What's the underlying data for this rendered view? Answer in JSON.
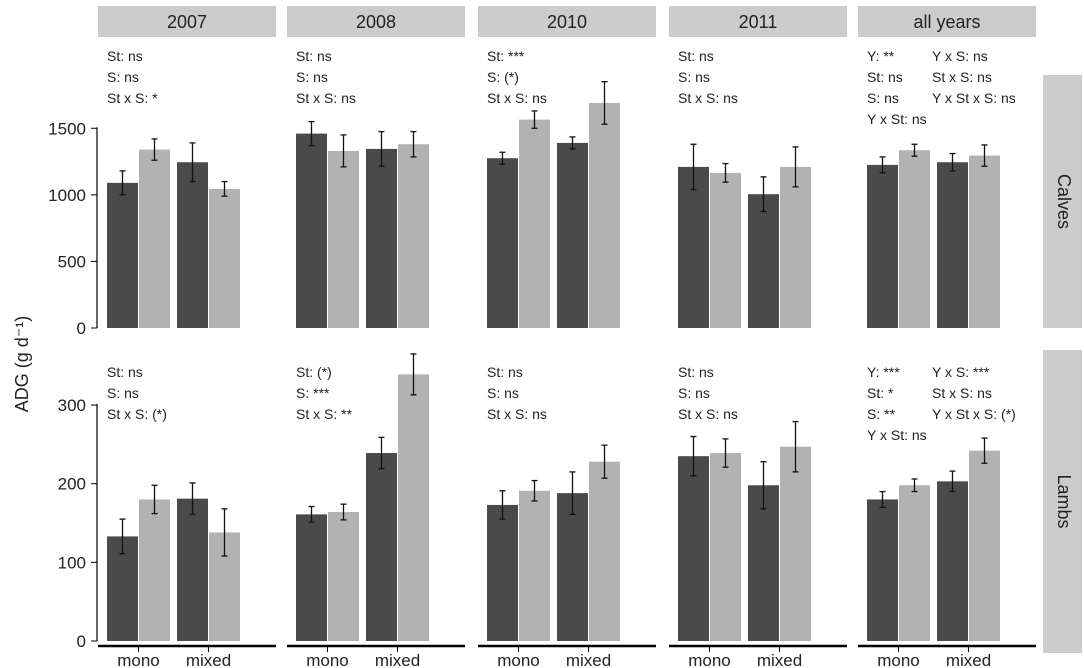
{
  "chart_data": {
    "type": "bar",
    "ylabel": "ADG (g d⁻¹)",
    "categories": [
      "mono",
      "mixed"
    ],
    "colors": {
      "dark": "#4a4a4a",
      "light": "#b2b2b2",
      "strip": "#cccccc",
      "axis": "#000000",
      "text": "#222222"
    },
    "columns": [
      "2007",
      "2008",
      "2010",
      "2011",
      "all years"
    ],
    "rows": [
      {
        "name": "Calves",
        "ylim": [
          0,
          1900
        ],
        "yticks": [
          0,
          500,
          1000,
          1500
        ],
        "panels": [
          {
            "bars": [
              {
                "value": 1090,
                "err": 90
              },
              {
                "value": 1340,
                "err": 80
              },
              {
                "value": 1245,
                "err": 145
              },
              {
                "value": 1045,
                "err": 55
              }
            ],
            "stats_left": [
              "St: ns",
              "S: ns",
              "St x S: *"
            ],
            "stats_right": []
          },
          {
            "bars": [
              {
                "value": 1460,
                "err": 90
              },
              {
                "value": 1330,
                "err": 120
              },
              {
                "value": 1345,
                "err": 130
              },
              {
                "value": 1380,
                "err": 95
              }
            ],
            "stats_left": [
              "St: ns",
              "S: ns",
              "St x S: ns"
            ],
            "stats_right": []
          },
          {
            "bars": [
              {
                "value": 1275,
                "err": 45
              },
              {
                "value": 1565,
                "err": 65
              },
              {
                "value": 1390,
                "err": 45
              },
              {
                "value": 1690,
                "err": 160
              }
            ],
            "stats_left": [
              "St: ***",
              "S: (*)",
              "St x S: ns"
            ],
            "stats_right": []
          },
          {
            "bars": [
              {
                "value": 1210,
                "err": 170
              },
              {
                "value": 1165,
                "err": 70
              },
              {
                "value": 1005,
                "err": 130
              },
              {
                "value": 1210,
                "err": 150
              }
            ],
            "stats_left": [
              "St: ns",
              "S: ns",
              "St x S: ns"
            ],
            "stats_right": []
          },
          {
            "bars": [
              {
                "value": 1225,
                "err": 60
              },
              {
                "value": 1335,
                "err": 45
              },
              {
                "value": 1245,
                "err": 65
              },
              {
                "value": 1295,
                "err": 80
              }
            ],
            "stats_left": [
              "Y: **",
              "St: ns",
              "S: ns",
              "Y x St: ns"
            ],
            "stats_right": [
              "Y x S: ns",
              "St x S: ns",
              "Y x St x S: ns"
            ]
          }
        ]
      },
      {
        "name": "Lambs",
        "ylim": [
          0,
          370
        ],
        "yticks": [
          0,
          100,
          200,
          300
        ],
        "panels": [
          {
            "bars": [
              {
                "value": 133,
                "err": 22
              },
              {
                "value": 180,
                "err": 18
              },
              {
                "value": 181,
                "err": 20
              },
              {
                "value": 138,
                "err": 30
              }
            ],
            "stats_left": [
              "St: ns",
              "S: ns",
              "St x S: (*)"
            ],
            "stats_right": []
          },
          {
            "bars": [
              {
                "value": 161,
                "err": 10
              },
              {
                "value": 164,
                "err": 10
              },
              {
                "value": 239,
                "err": 20
              },
              {
                "value": 339,
                "err": 26
              }
            ],
            "stats_left": [
              "St: (*)",
              "S: ***",
              "St x S: **"
            ],
            "stats_right": []
          },
          {
            "bars": [
              {
                "value": 173,
                "err": 18
              },
              {
                "value": 191,
                "err": 13
              },
              {
                "value": 188,
                "err": 27
              },
              {
                "value": 228,
                "err": 21
              }
            ],
            "stats_left": [
              "St: ns",
              "S: ns",
              "St x S: ns"
            ],
            "stats_right": []
          },
          {
            "bars": [
              {
                "value": 235,
                "err": 25
              },
              {
                "value": 239,
                "err": 18
              },
              {
                "value": 198,
                "err": 30
              },
              {
                "value": 247,
                "err": 32
              }
            ],
            "stats_left": [
              "St: ns",
              "S: ns",
              "St x S: ns"
            ],
            "stats_right": []
          },
          {
            "bars": [
              {
                "value": 180,
                "err": 10
              },
              {
                "value": 198,
                "err": 8
              },
              {
                "value": 203,
                "err": 13
              },
              {
                "value": 242,
                "err": 16
              }
            ],
            "stats_left": [
              "Y: ***",
              "St: *",
              "S: **",
              "Y x St: ns"
            ],
            "stats_right": [
              "Y x S: ***",
              "St x S: ns",
              "Y x St x S: (*)"
            ]
          }
        ]
      }
    ]
  }
}
